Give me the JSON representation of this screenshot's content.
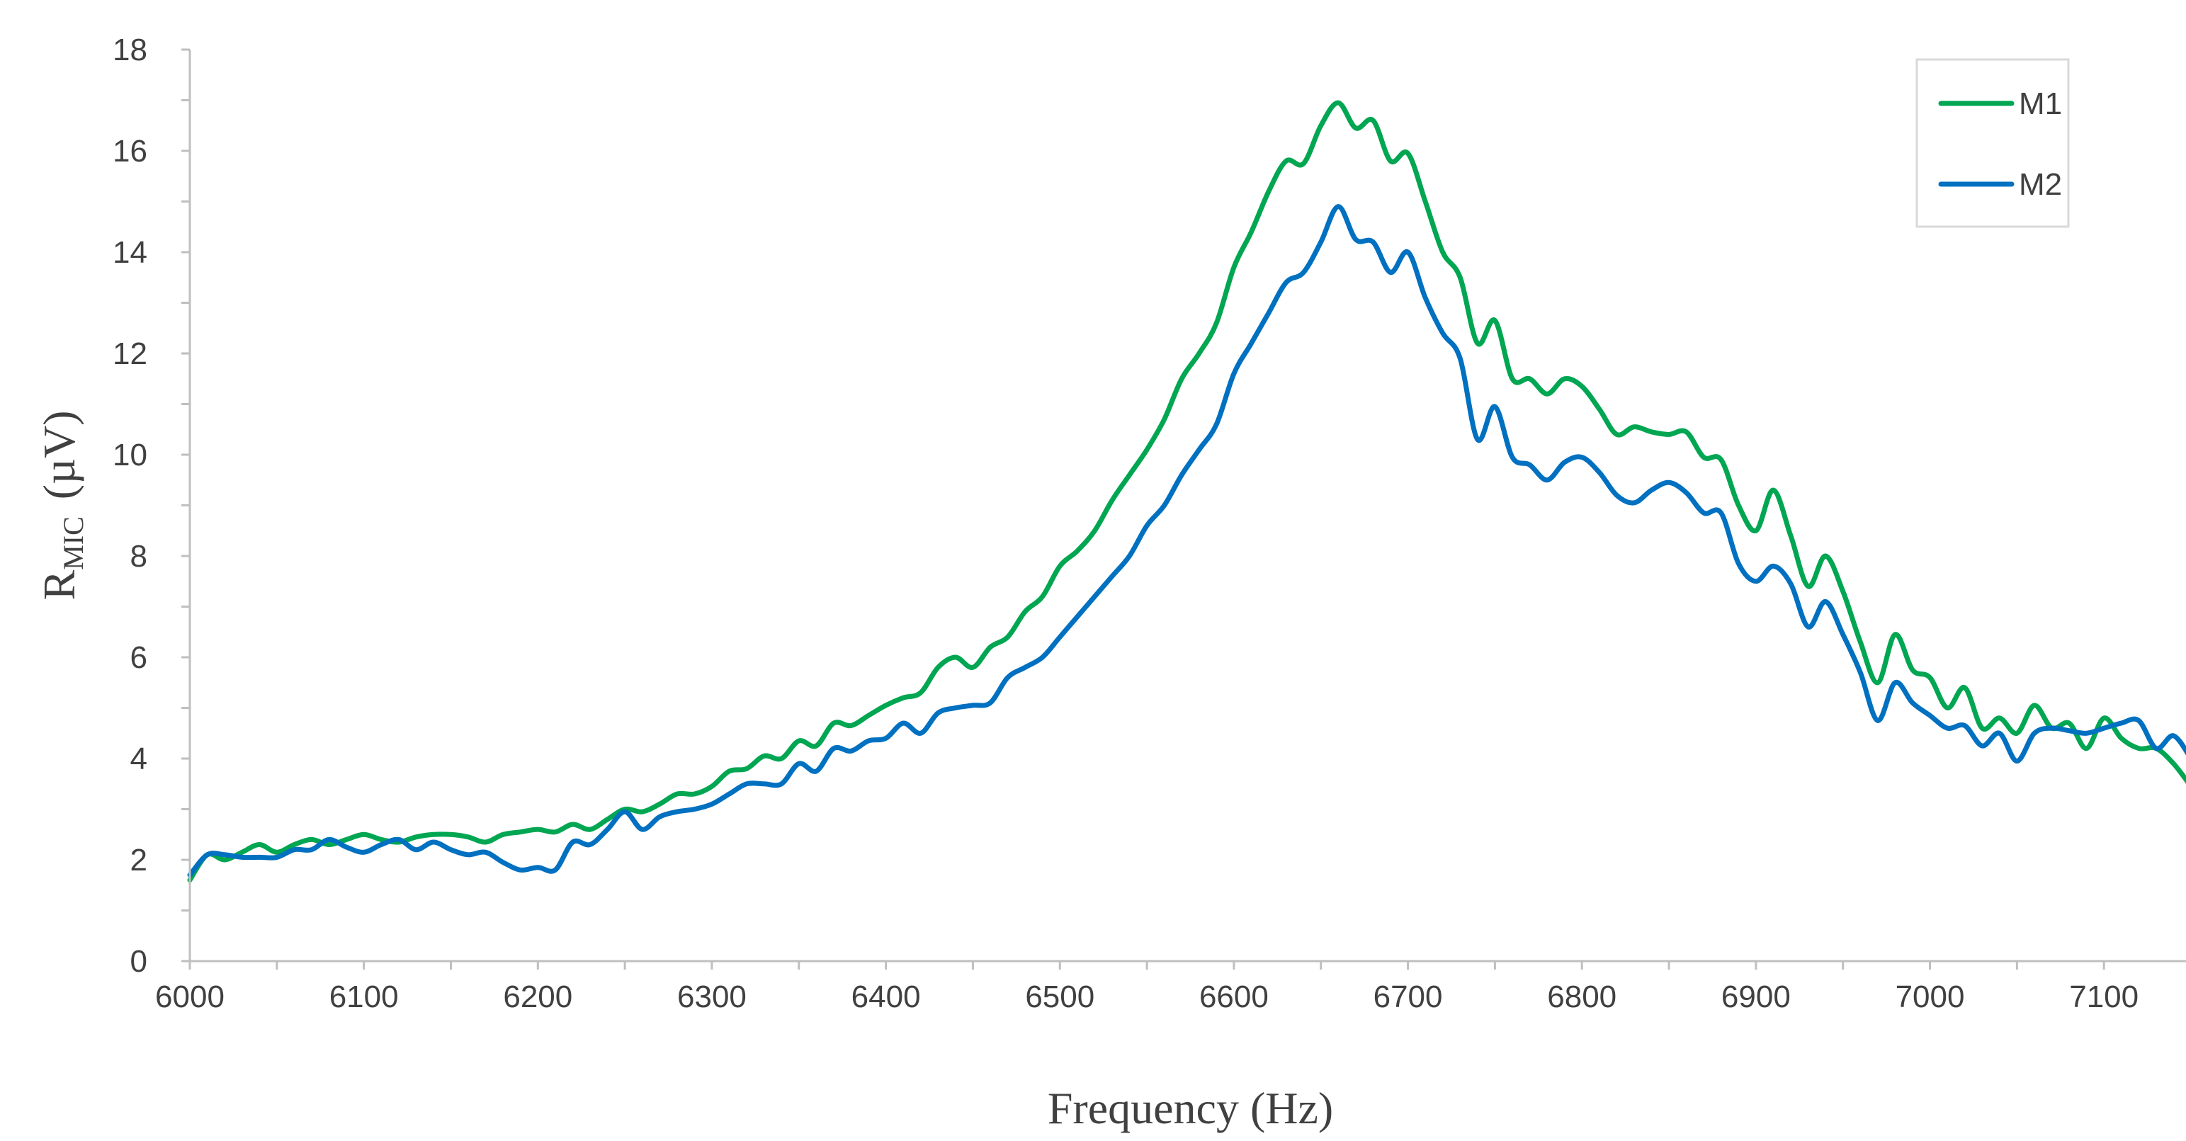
{
  "chart_data": {
    "type": "line",
    "title": "",
    "xlabel": "Frequency (Hz)",
    "ylabel_main": "R",
    "ylabel_sub": "MIC",
    "ylabel_unit": "(µV)",
    "xlim": [
      6000,
      7150
    ],
    "ylim": [
      0,
      18
    ],
    "x_ticks": [
      6000,
      6100,
      6200,
      6300,
      6400,
      6500,
      6600,
      6700,
      6800,
      6900,
      7000,
      7100
    ],
    "y_ticks": [
      0,
      2,
      4,
      6,
      8,
      10,
      12,
      14,
      16,
      18
    ],
    "grid": false,
    "legend_position": "top-right",
    "series": [
      {
        "name": "M1",
        "color": "#00a651",
        "points": [
          [
            6000,
            1.6
          ],
          [
            6010,
            2.1
          ],
          [
            6020,
            2.0
          ],
          [
            6030,
            2.15
          ],
          [
            6040,
            2.3
          ],
          [
            6050,
            2.15
          ],
          [
            6060,
            2.3
          ],
          [
            6070,
            2.4
          ],
          [
            6080,
            2.3
          ],
          [
            6090,
            2.4
          ],
          [
            6100,
            2.5
          ],
          [
            6110,
            2.4
          ],
          [
            6120,
            2.35
          ],
          [
            6130,
            2.45
          ],
          [
            6140,
            2.5
          ],
          [
            6150,
            2.5
          ],
          [
            6160,
            2.45
          ],
          [
            6170,
            2.35
          ],
          [
            6180,
            2.5
          ],
          [
            6190,
            2.55
          ],
          [
            6200,
            2.6
          ],
          [
            6210,
            2.55
          ],
          [
            6220,
            2.7
          ],
          [
            6230,
            2.6
          ],
          [
            6240,
            2.8
          ],
          [
            6250,
            3.0
          ],
          [
            6260,
            2.95
          ],
          [
            6270,
            3.1
          ],
          [
            6280,
            3.3
          ],
          [
            6290,
            3.3
          ],
          [
            6300,
            3.45
          ],
          [
            6310,
            3.75
          ],
          [
            6320,
            3.8
          ],
          [
            6330,
            4.05
          ],
          [
            6340,
            4.0
          ],
          [
            6350,
            4.35
          ],
          [
            6360,
            4.25
          ],
          [
            6370,
            4.7
          ],
          [
            6380,
            4.65
          ],
          [
            6390,
            4.85
          ],
          [
            6400,
            5.05
          ],
          [
            6410,
            5.2
          ],
          [
            6420,
            5.3
          ],
          [
            6430,
            5.8
          ],
          [
            6440,
            6.0
          ],
          [
            6450,
            5.8
          ],
          [
            6460,
            6.2
          ],
          [
            6470,
            6.4
          ],
          [
            6480,
            6.9
          ],
          [
            6490,
            7.2
          ],
          [
            6500,
            7.8
          ],
          [
            6510,
            8.1
          ],
          [
            6520,
            8.5
          ],
          [
            6530,
            9.1
          ],
          [
            6540,
            9.6
          ],
          [
            6550,
            10.1
          ],
          [
            6560,
            10.7
          ],
          [
            6570,
            11.5
          ],
          [
            6580,
            12.0
          ],
          [
            6590,
            12.6
          ],
          [
            6600,
            13.7
          ],
          [
            6610,
            14.4
          ],
          [
            6620,
            15.2
          ],
          [
            6630,
            15.8
          ],
          [
            6640,
            15.75
          ],
          [
            6650,
            16.5
          ],
          [
            6660,
            16.95
          ],
          [
            6670,
            16.45
          ],
          [
            6680,
            16.6
          ],
          [
            6690,
            15.8
          ],
          [
            6700,
            15.95
          ],
          [
            6710,
            15.0
          ],
          [
            6720,
            14.0
          ],
          [
            6730,
            13.5
          ],
          [
            6740,
            12.2
          ],
          [
            6750,
            12.65
          ],
          [
            6760,
            11.5
          ],
          [
            6770,
            11.5
          ],
          [
            6780,
            11.2
          ],
          [
            6790,
            11.5
          ],
          [
            6800,
            11.35
          ],
          [
            6810,
            10.9
          ],
          [
            6820,
            10.4
          ],
          [
            6830,
            10.55
          ],
          [
            6840,
            10.45
          ],
          [
            6850,
            10.4
          ],
          [
            6860,
            10.45
          ],
          [
            6870,
            9.95
          ],
          [
            6880,
            9.9
          ],
          [
            6890,
            9.0
          ],
          [
            6900,
            8.5
          ],
          [
            6910,
            9.3
          ],
          [
            6920,
            8.4
          ],
          [
            6930,
            7.4
          ],
          [
            6940,
            8.0
          ],
          [
            6950,
            7.3
          ],
          [
            6960,
            6.3
          ],
          [
            6970,
            5.5
          ],
          [
            6980,
            6.45
          ],
          [
            6990,
            5.75
          ],
          [
            7000,
            5.6
          ],
          [
            7010,
            5.0
          ],
          [
            7020,
            5.4
          ],
          [
            7030,
            4.6
          ],
          [
            7040,
            4.8
          ],
          [
            7050,
            4.5
          ],
          [
            7060,
            5.05
          ],
          [
            7070,
            4.6
          ],
          [
            7080,
            4.7
          ],
          [
            7090,
            4.2
          ],
          [
            7100,
            4.8
          ],
          [
            7110,
            4.4
          ],
          [
            7120,
            4.2
          ],
          [
            7130,
            4.2
          ],
          [
            7140,
            3.9
          ],
          [
            7150,
            3.45
          ]
        ]
      },
      {
        "name": "M2",
        "color": "#0070c0",
        "points": [
          [
            6000,
            1.7
          ],
          [
            6010,
            2.1
          ],
          [
            6020,
            2.1
          ],
          [
            6030,
            2.05
          ],
          [
            6040,
            2.05
          ],
          [
            6050,
            2.05
          ],
          [
            6060,
            2.2
          ],
          [
            6070,
            2.2
          ],
          [
            6080,
            2.4
          ],
          [
            6090,
            2.25
          ],
          [
            6100,
            2.15
          ],
          [
            6110,
            2.3
          ],
          [
            6120,
            2.4
          ],
          [
            6130,
            2.2
          ],
          [
            6140,
            2.35
          ],
          [
            6150,
            2.2
          ],
          [
            6160,
            2.1
          ],
          [
            6170,
            2.15
          ],
          [
            6180,
            1.95
          ],
          [
            6190,
            1.8
          ],
          [
            6200,
            1.85
          ],
          [
            6210,
            1.8
          ],
          [
            6220,
            2.35
          ],
          [
            6230,
            2.3
          ],
          [
            6240,
            2.6
          ],
          [
            6250,
            2.95
          ],
          [
            6260,
            2.6
          ],
          [
            6270,
            2.85
          ],
          [
            6280,
            2.95
          ],
          [
            6290,
            3.0
          ],
          [
            6300,
            3.1
          ],
          [
            6310,
            3.3
          ],
          [
            6320,
            3.5
          ],
          [
            6330,
            3.5
          ],
          [
            6340,
            3.5
          ],
          [
            6350,
            3.9
          ],
          [
            6360,
            3.75
          ],
          [
            6370,
            4.2
          ],
          [
            6380,
            4.15
          ],
          [
            6390,
            4.35
          ],
          [
            6400,
            4.4
          ],
          [
            6410,
            4.7
          ],
          [
            6420,
            4.5
          ],
          [
            6430,
            4.9
          ],
          [
            6440,
            5.0
          ],
          [
            6450,
            5.05
          ],
          [
            6460,
            5.1
          ],
          [
            6470,
            5.6
          ],
          [
            6480,
            5.8
          ],
          [
            6490,
            6.0
          ],
          [
            6500,
            6.4
          ],
          [
            6510,
            6.8
          ],
          [
            6520,
            7.2
          ],
          [
            6530,
            7.6
          ],
          [
            6540,
            8.0
          ],
          [
            6550,
            8.6
          ],
          [
            6560,
            9.0
          ],
          [
            6570,
            9.6
          ],
          [
            6580,
            10.1
          ],
          [
            6590,
            10.6
          ],
          [
            6600,
            11.6
          ],
          [
            6610,
            12.2
          ],
          [
            6620,
            12.8
          ],
          [
            6630,
            13.4
          ],
          [
            6640,
            13.6
          ],
          [
            6650,
            14.2
          ],
          [
            6660,
            14.9
          ],
          [
            6670,
            14.25
          ],
          [
            6680,
            14.2
          ],
          [
            6690,
            13.6
          ],
          [
            6700,
            14.0
          ],
          [
            6710,
            13.1
          ],
          [
            6720,
            12.4
          ],
          [
            6730,
            11.9
          ],
          [
            6740,
            10.3
          ],
          [
            6750,
            10.95
          ],
          [
            6760,
            9.95
          ],
          [
            6770,
            9.8
          ],
          [
            6780,
            9.5
          ],
          [
            6790,
            9.85
          ],
          [
            6800,
            9.95
          ],
          [
            6810,
            9.65
          ],
          [
            6820,
            9.2
          ],
          [
            6830,
            9.05
          ],
          [
            6840,
            9.3
          ],
          [
            6850,
            9.45
          ],
          [
            6860,
            9.25
          ],
          [
            6870,
            8.85
          ],
          [
            6880,
            8.85
          ],
          [
            6890,
            7.85
          ],
          [
            6900,
            7.5
          ],
          [
            6910,
            7.8
          ],
          [
            6920,
            7.45
          ],
          [
            6930,
            6.6
          ],
          [
            6940,
            7.1
          ],
          [
            6950,
            6.45
          ],
          [
            6960,
            5.7
          ],
          [
            6970,
            4.75
          ],
          [
            6980,
            5.5
          ],
          [
            6990,
            5.1
          ],
          [
            7000,
            4.85
          ],
          [
            7010,
            4.6
          ],
          [
            7020,
            4.65
          ],
          [
            7030,
            4.25
          ],
          [
            7040,
            4.5
          ],
          [
            7050,
            3.95
          ],
          [
            7060,
            4.5
          ],
          [
            7070,
            4.6
          ],
          [
            7080,
            4.55
          ],
          [
            7090,
            4.5
          ],
          [
            7100,
            4.6
          ],
          [
            7110,
            4.7
          ],
          [
            7120,
            4.75
          ],
          [
            7130,
            4.2
          ],
          [
            7140,
            4.45
          ],
          [
            7150,
            4.0
          ]
        ]
      }
    ]
  }
}
